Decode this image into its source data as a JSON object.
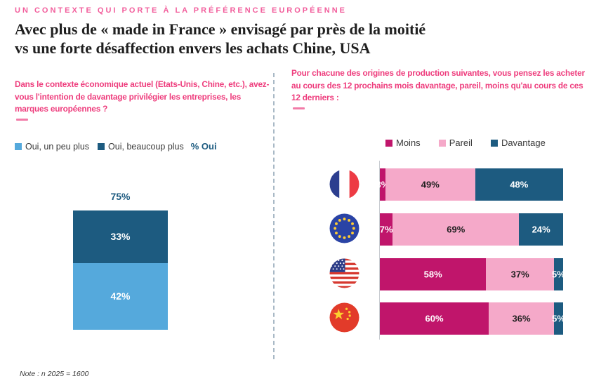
{
  "page": {
    "kicker": "UN CONTEXTE QUI PORTE À LA PRÉFÉRENCE EUROPÉENNE",
    "title_line1": "Avec plus de « made in France » envisagé par près de la moitié",
    "title_line2": "vs une forte désaffection envers les achats Chine, USA",
    "note": "Note : n 2025 = 1600"
  },
  "left_panel": {
    "question": "Dans le contexte économique actuel (Etats-Unis, Chine, etc.), avez-vous l'intention de davantage privilégier les entreprises, les marques européennes ?",
    "legend_suffix": "% Oui",
    "total_label": "75%"
  },
  "right_panel": {
    "question": "Pour chacune des origines de production suivantes, vous pensez les acheter au cours des 12 prochains mois davantage, pareil, moins qu'au cours de ces 12 derniers :"
  },
  "colors": {
    "question_pink": "#EE3D7D",
    "kicker_pink": "#F25E9C",
    "light_blue": "#55A9DC",
    "dark_blue": "#1D5B80",
    "magenta": "#C0156B",
    "light_pink": "#F5A9C9",
    "divider_gray": "#A9B9C6",
    "title_dark": "#1F1F1F"
  },
  "chart_data": [
    {
      "type": "bar",
      "orientation": "vertical-stacked",
      "title": "Dans le contexte économique actuel (Etats-Unis, Chine, etc.), avez-vous l'intention de davantage privilégier les entreprises, les marques européennes ?",
      "series": [
        {
          "name": "Oui, un peu plus",
          "values": [
            42
          ],
          "color": "#55A9DC",
          "label_color": "#FFFFFF"
        },
        {
          "name": "Oui, beaucoup plus",
          "values": [
            33
          ],
          "color": "#1D5B80",
          "label_color": "#FFFFFF"
        }
      ],
      "total": 75,
      "total_label": "75%",
      "legend_position": "top",
      "ylim": [
        0,
        75
      ],
      "grid": false
    },
    {
      "type": "bar",
      "orientation": "horizontal-stacked",
      "title": "Pour chacune des origines de production suivantes, vous pensez les acheter au cours des 12 prochains mois davantage, pareil, moins qu'au cours de ces 12 derniers :",
      "categories": [
        "France",
        "Union européenne",
        "États-Unis",
        "Chine"
      ],
      "series": [
        {
          "name": "Moins",
          "values": [
            3,
            7,
            58,
            60
          ],
          "color": "#C0156B",
          "label_color": "#FFFFFF"
        },
        {
          "name": "Pareil",
          "values": [
            49,
            69,
            37,
            36
          ],
          "color": "#F5A9C9",
          "label_color": "#1F1F1F"
        },
        {
          "name": "Davantage",
          "values": [
            48,
            24,
            5,
            5
          ],
          "color": "#1D5B80",
          "label_color": "#FFFFFF"
        }
      ],
      "xlim": [
        0,
        100
      ],
      "legend_position": "top",
      "grid": false
    }
  ]
}
